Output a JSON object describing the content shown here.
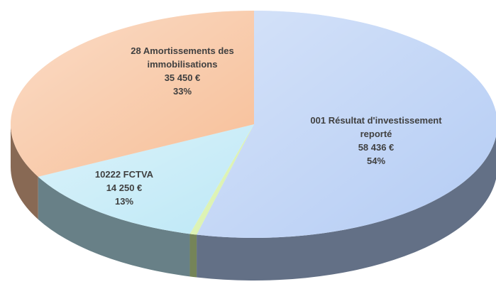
{
  "chart_data": {
    "type": "pie",
    "categories": [
      "001 Résultat d'investissement reporté",
      null,
      "10222 FCTVA",
      "28 Amortissements des immobilisations"
    ],
    "values": [
      58436,
      500,
      14250,
      35450
    ],
    "value_labels": [
      "58 436 €",
      null,
      "14 250 €",
      "35 450 €"
    ],
    "percent_labels": [
      "54%",
      null,
      "13%",
      "33%"
    ],
    "colors": [
      "#b4ccf4",
      "#d4f0a0",
      "#bde8f6",
      "#f7bf98"
    ]
  }
}
